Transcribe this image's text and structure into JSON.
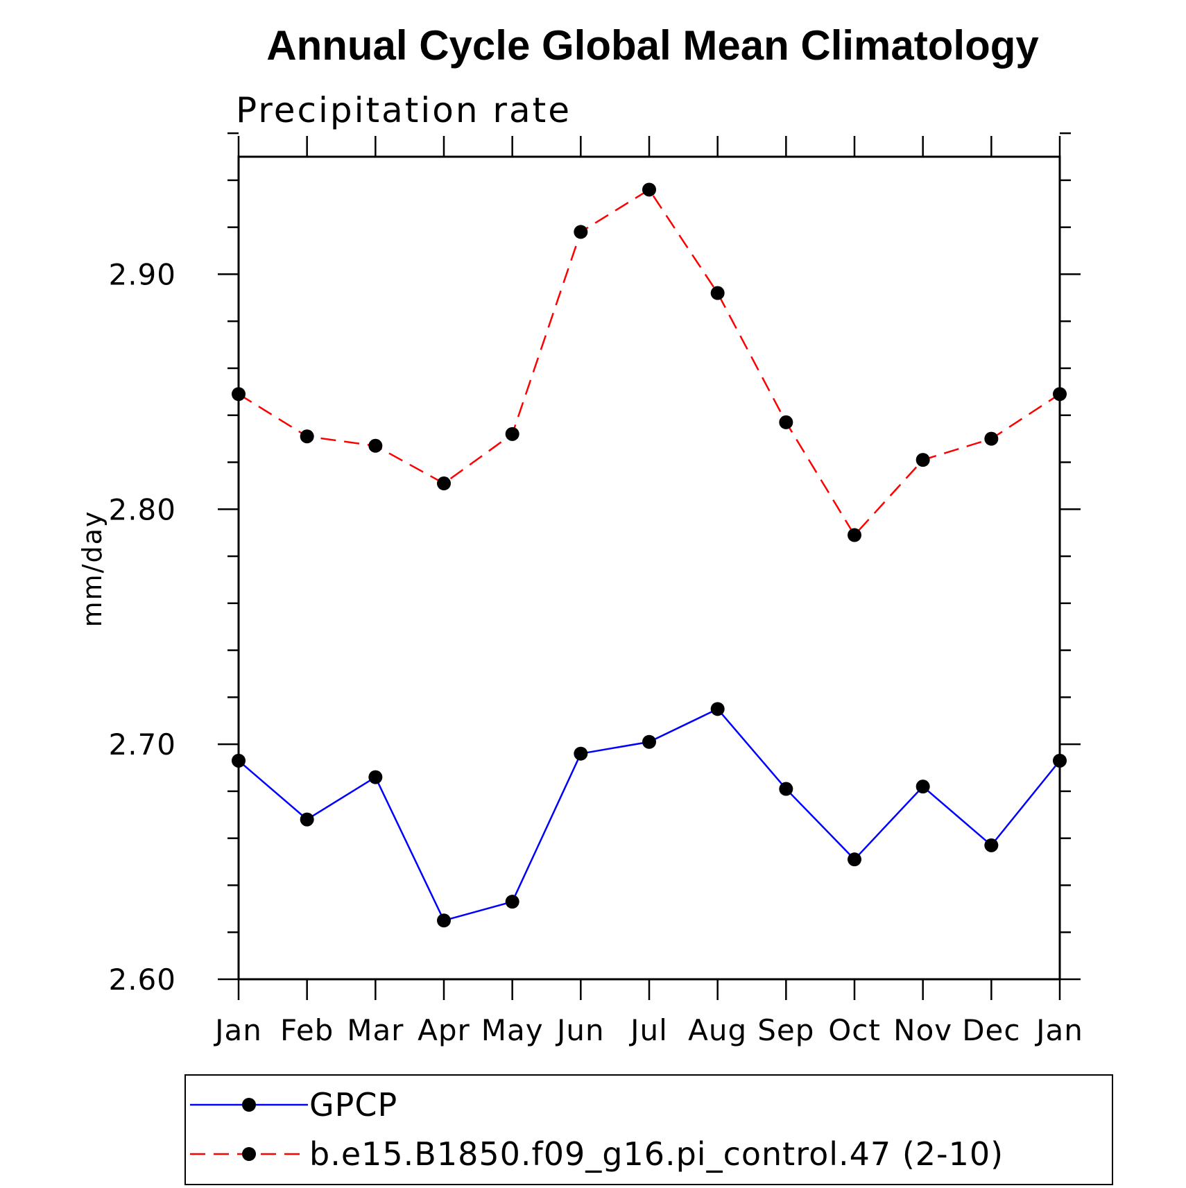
{
  "chart_data": {
    "type": "line",
    "title": "Annual Cycle Global Mean Climatology",
    "subtitle": "Precipitation rate",
    "xlabel": "",
    "ylabel": "mm/day",
    "categories": [
      "Jan",
      "Feb",
      "Mar",
      "Apr",
      "May",
      "Jun",
      "Jul",
      "Aug",
      "Sep",
      "Oct",
      "Nov",
      "Dec",
      "Jan"
    ],
    "ylim": [
      2.6,
      2.95
    ],
    "yticks_major": [
      "2.60",
      "2.70",
      "2.80",
      "2.90"
    ],
    "grid": false,
    "legend_position": "bottom",
    "series": [
      {
        "name": "GPCP",
        "color": "#0000ff",
        "line_style": "solid",
        "marker": "filled-circle",
        "values": [
          2.693,
          2.668,
          2.686,
          2.625,
          2.633,
          2.696,
          2.701,
          2.715,
          2.681,
          2.651,
          2.682,
          2.657,
          2.693
        ]
      },
      {
        "name": "b.e15.B1850.f09_g16.pi_control.47 (2-10)",
        "color": "#ff0000",
        "line_style": "dashed",
        "marker": "filled-circle",
        "values": [
          2.849,
          2.831,
          2.827,
          2.811,
          2.832,
          2.918,
          2.936,
          2.892,
          2.837,
          2.789,
          2.821,
          2.83,
          2.849
        ]
      }
    ]
  }
}
